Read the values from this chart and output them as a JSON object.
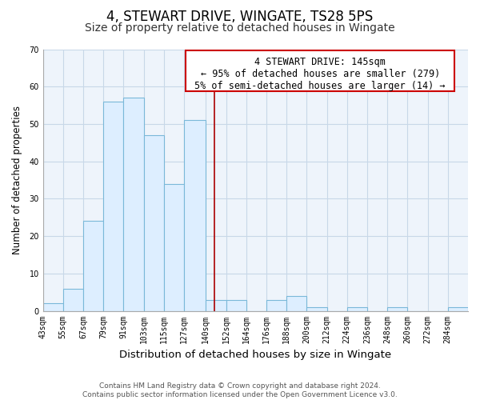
{
  "title": "4, STEWART DRIVE, WINGATE, TS28 5PS",
  "subtitle": "Size of property relative to detached houses in Wingate",
  "xlabel": "Distribution of detached houses by size in Wingate",
  "ylabel": "Number of detached properties",
  "bar_edges": [
    43,
    55,
    67,
    79,
    91,
    103,
    115,
    127,
    140,
    152,
    164,
    176,
    188,
    200,
    212,
    224,
    236,
    248,
    260,
    272,
    284,
    296
  ],
  "bar_heights": [
    2,
    6,
    24,
    56,
    57,
    47,
    34,
    51,
    3,
    3,
    0,
    3,
    4,
    1,
    0,
    1,
    0,
    1,
    0,
    0,
    1
  ],
  "bar_color": "#ddeeff",
  "bar_edge_color": "#7ab8d9",
  "vline_x": 145,
  "vline_color": "#aa0000",
  "ann_line1": "4 STEWART DRIVE: 145sqm",
  "ann_line2": "← 95% of detached houses are smaller (279)",
  "ann_line3": "5% of semi-detached houses are larger (14) →",
  "annotation_box_edgecolor": "#cc0000",
  "annotation_box_facecolor": "#ffffff",
  "ylim": [
    0,
    70
  ],
  "yticks": [
    0,
    10,
    20,
    30,
    40,
    50,
    60,
    70
  ],
  "grid_color": "#c8d8e8",
  "footnote": "Contains HM Land Registry data © Crown copyright and database right 2024.\nContains public sector information licensed under the Open Government Licence v3.0.",
  "title_fontsize": 12,
  "subtitle_fontsize": 10,
  "xlabel_fontsize": 9.5,
  "ylabel_fontsize": 8.5,
  "tick_fontsize": 7,
  "annotation_fontsize": 8.5,
  "footnote_fontsize": 6.5
}
